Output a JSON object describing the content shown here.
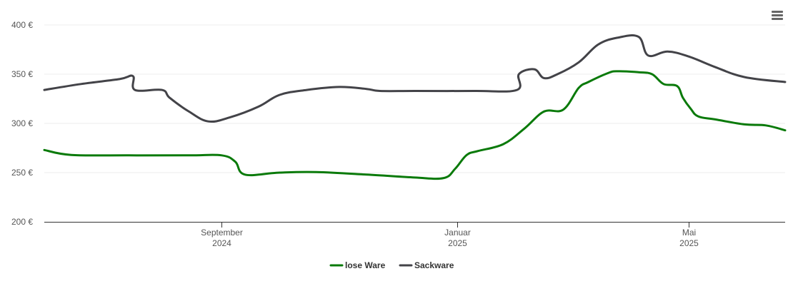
{
  "menu_icon": "hamburger-menu-icon",
  "chart_data": {
    "type": "line",
    "title": "",
    "xlabel": "",
    "ylabel": "",
    "ylim": [
      200,
      400
    ],
    "xlim": [
      "2024-06-01",
      "2025-06-20"
    ],
    "yticks": [
      {
        "value": 200,
        "label": "200 €"
      },
      {
        "value": 250,
        "label": "250 €"
      },
      {
        "value": 300,
        "label": "300 €"
      },
      {
        "value": 350,
        "label": "350 €"
      },
      {
        "value": 400,
        "label": "400 €"
      }
    ],
    "xticks": [
      {
        "date": "2024-09-01",
        "label": "September",
        "year": "2024"
      },
      {
        "date": "2025-01-01",
        "label": "Januar",
        "year": "2025"
      },
      {
        "date": "2025-05-01",
        "label": "Mai",
        "year": "2025"
      }
    ],
    "grid": "horizontal",
    "legend_position": "bottom-center",
    "series": [
      {
        "name": "lose Ware",
        "color": "#0a7a0a",
        "points": [
          [
            "2024-06-01",
            273
          ],
          [
            "2024-06-15",
            268
          ],
          [
            "2024-07-15",
            267.5
          ],
          [
            "2024-08-15",
            267.5
          ],
          [
            "2024-09-01",
            267.5
          ],
          [
            "2024-09-08",
            261
          ],
          [
            "2024-09-13",
            248
          ],
          [
            "2024-10-01",
            250
          ],
          [
            "2024-10-20",
            250.5
          ],
          [
            "2024-11-15",
            248
          ],
          [
            "2024-12-10",
            245
          ],
          [
            "2024-12-25",
            244.5
          ],
          [
            "2024-12-31",
            254
          ],
          [
            "2025-01-06",
            268
          ],
          [
            "2025-01-12",
            272
          ],
          [
            "2025-01-25",
            279
          ],
          [
            "2025-02-05",
            295
          ],
          [
            "2025-02-15",
            312
          ],
          [
            "2025-02-25",
            314
          ],
          [
            "2025-03-05",
            336
          ],
          [
            "2025-03-10",
            342
          ],
          [
            "2025-03-20",
            351
          ],
          [
            "2025-03-25",
            353
          ],
          [
            "2025-04-05",
            352
          ],
          [
            "2025-04-12",
            350
          ],
          [
            "2025-04-18",
            340
          ],
          [
            "2025-04-25",
            338
          ],
          [
            "2025-04-28",
            326
          ],
          [
            "2025-05-02",
            315
          ],
          [
            "2025-05-06",
            307
          ],
          [
            "2025-05-15",
            304
          ],
          [
            "2025-05-30",
            299
          ],
          [
            "2025-06-10",
            298
          ],
          [
            "2025-06-20",
            293
          ]
        ]
      },
      {
        "name": "Sackware",
        "color": "#434348",
        "points": [
          [
            "2024-06-01",
            334
          ],
          [
            "2024-06-20",
            340
          ],
          [
            "2024-07-10",
            345
          ],
          [
            "2024-07-17",
            348
          ],
          [
            "2024-07-18",
            334
          ],
          [
            "2024-08-01",
            334
          ],
          [
            "2024-08-05",
            326
          ],
          [
            "2024-08-15",
            312
          ],
          [
            "2024-08-25",
            302
          ],
          [
            "2024-09-05",
            306
          ],
          [
            "2024-09-20",
            317
          ],
          [
            "2024-10-01",
            329
          ],
          [
            "2024-10-15",
            334
          ],
          [
            "2024-11-01",
            337
          ],
          [
            "2024-11-15",
            335
          ],
          [
            "2024-11-22",
            333
          ],
          [
            "2024-12-10",
            333
          ],
          [
            "2025-01-10",
            333
          ],
          [
            "2025-02-01",
            334
          ],
          [
            "2025-02-02",
            350
          ],
          [
            "2025-02-10",
            355
          ],
          [
            "2025-02-15",
            346
          ],
          [
            "2025-02-22",
            350
          ],
          [
            "2025-03-05",
            362
          ],
          [
            "2025-03-15",
            380
          ],
          [
            "2025-03-25",
            387
          ],
          [
            "2025-04-05",
            388
          ],
          [
            "2025-04-10",
            369
          ],
          [
            "2025-04-20",
            373
          ],
          [
            "2025-05-01",
            368
          ],
          [
            "2025-05-15",
            357
          ],
          [
            "2025-05-30",
            347
          ],
          [
            "2025-06-20",
            342
          ]
        ]
      }
    ]
  }
}
